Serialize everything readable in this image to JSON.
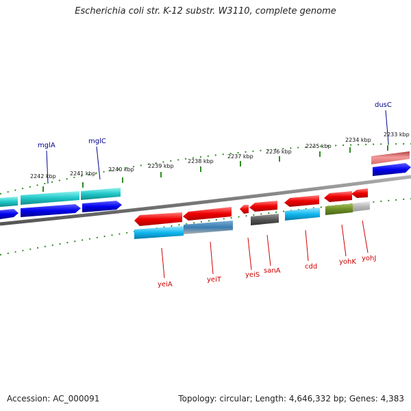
{
  "header": {
    "title": "Escherichia coli str. K-12 substr. W3110, complete genome"
  },
  "footer": {
    "accession": "Accession: AC_000091",
    "summary": "Topology: circular; Length: 4,646,332 bp; Genes: 4,383"
  },
  "scale": {
    "tick_labels": [
      "2233 kbp",
      "2234 kbp",
      "2235 kbp",
      "2236 kbp",
      "2237 kbp",
      "2238 kbp",
      "2239 kbp",
      "2240 kbp",
      "2241 kbp",
      "2242 kbp"
    ]
  },
  "genes_forward": [
    {
      "name": "dusC"
    },
    {
      "name": "mglC"
    },
    {
      "name": "mglA"
    }
  ],
  "genes_reverse": [
    {
      "name": "yeiA"
    },
    {
      "name": "yeiT"
    },
    {
      "name": "yeiS"
    },
    {
      "name": "sanA"
    },
    {
      "name": "cdd"
    },
    {
      "name": "yohK"
    },
    {
      "name": "yohJ"
    }
  ],
  "colors": {
    "forward_label": "#00008b",
    "reverse_label": "#cc0000",
    "backbone": "#7a7a7a",
    "scale_ticks": "#2e8b22"
  }
}
